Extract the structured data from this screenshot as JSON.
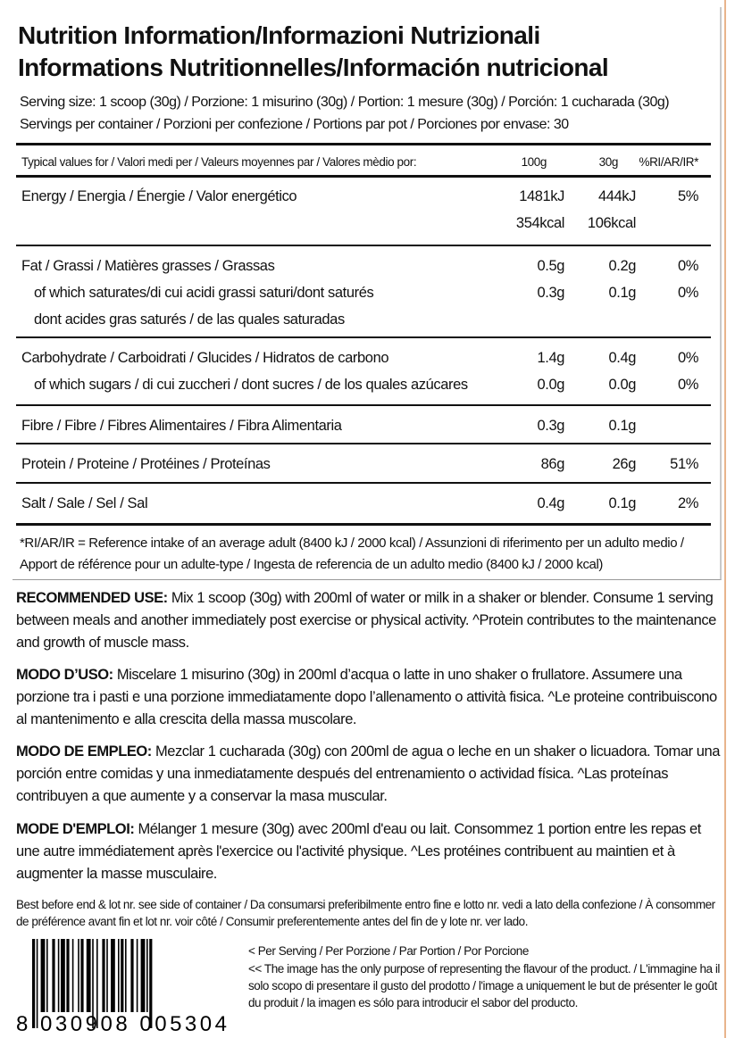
{
  "title": {
    "line1": "Nutrition Information/Informazioni Nutrizionali",
    "line2": "Informations Nutritionnelles/Información nutricional"
  },
  "serving": {
    "size": "Serving size: 1 scoop (30g) / Porzione: 1 misurino (30g) / Portion: 1 mesure (30g) / Porción: 1 cucharada (30g)",
    "per_container": "Servings per container / Porzioni per confezione / Portions par pot / Porciones por envase: 30"
  },
  "header": {
    "label": "Typical values for / Valori medi per / Valeurs moyennes par / Valores mèdio por:",
    "c1": "100g",
    "c2": "30g",
    "c3": "%RI/AR/IR*"
  },
  "groups": [
    {
      "lines": [
        {
          "label": "Energy / Energia / Énergie / Valor energético",
          "c1": "1481kJ",
          "c2": "444kJ",
          "c3": "5%"
        },
        {
          "label": "",
          "c1": "354kcal",
          "c2": "106kcal",
          "c3": ""
        }
      ]
    },
    {
      "lines": [
        {
          "label": "Fat / Grassi / Matières grasses / Grassas",
          "c1": "0.5g",
          "c2": "0.2g",
          "c3": "0%"
        },
        {
          "label": "of which saturates/di cui acidi grassi saturi/dont saturés",
          "c1": "0.3g",
          "c2": "0.1g",
          "c3": "0%",
          "indent": true
        },
        {
          "label": "dont acides gras saturés / de las quales saturadas",
          "c1": "",
          "c2": "",
          "c3": "",
          "indent": true
        }
      ]
    },
    {
      "lines": [
        {
          "label": "Carbohydrate / Carboidrati / Glucides / Hidratos de carbono",
          "c1": "1.4g",
          "c2": "0.4g",
          "c3": "0%"
        },
        {
          "label": "of which sugars / di cui zuccheri / dont sucres / de los quales azúcares",
          "c1": "0.0g",
          "c2": "0.0g",
          "c3": "0%",
          "indent": true
        }
      ]
    },
    {
      "lines": [
        {
          "label": "Fibre / Fibre / Fibres Alimentaires / Fibra Alimentaria",
          "c1": "0.3g",
          "c2": "0.1g",
          "c3": ""
        }
      ]
    },
    {
      "lines": [
        {
          "label": "Protein / Proteine / Protéines / Proteínas",
          "c1": "86g",
          "c2": "26g",
          "c3": "51%"
        }
      ]
    },
    {
      "lines": [
        {
          "label": "Salt / Sale / Sel / Sal",
          "c1": "0.4g",
          "c2": "0.1g",
          "c3": "2%"
        }
      ]
    }
  ],
  "footnote": "*RI/AR/IR = Reference intake of an average adult (8400 kJ / 2000 kcal)  / Assunzioni di riferimento per un adulto medio / Apport de référence pour un adulte-type / Ingesta de referencia de un adulto medio (8400 kJ / 2000 kcal)",
  "usage": [
    {
      "head": "RECOMMENDED USE:",
      "text": " Mix 1 scoop (30g) with 200ml of water or milk in a shaker or blender. Consume 1 serving between meals and another immediately post exercise or physical activity. ^Protein contributes to the maintenance and growth of muscle mass."
    },
    {
      "head": "MODO D’USO:",
      "text": " Miscelare 1 misurino (30g) in 200ml d’acqua o latte in uno shaker o frullatore. Assumere una porzione tra i pasti e una porzione immediatamente dopo l’allenamento o attività fisica. ^Le proteine contribuiscono al mantenimento e alla crescita della massa muscolare."
    },
    {
      "head": "MODO DE EMPLEO:",
      "text": " Mezclar 1 cucharada (30g) con 200ml de agua o leche en un shaker o licuadora. Tomar una porción entre comidas y una inmediatamente después del entrenamiento o actividad física. ^Las proteínas contribuyen a que aumente y a conservar la masa muscular."
    },
    {
      "head": "MODE D'EMPLOI:",
      "text": " Mélanger 1 mesure (30g) avec 200ml d'eau ou lait. Consommez 1 portion entre les repas et une autre immédiatement après l'exercice ou l'activité physique. ^Les protéines contribuent au maintien et à augmenter la masse musculaire."
    }
  ],
  "best_before": "Best before end & lot nr. see side of container / Da consumarsi preferibilmente entro fine e lotto nr. vedi a lato della confezione / À consommer de préférence avant fin et lot nr. voir côté / Consumir preferentemente antes del fin de y lote nr. ver lado.",
  "barcode": "8 030908 005304",
  "notes": {
    "per_serving": "< Per Serving / Per Porzione / Par Portion / Por Porcione",
    "image": "<< The image has the only purpose of representing the flavour of the product. / L'immagine ha il solo scopo di presentare il gusto del prodotto / l'image a uniquement le but de présenter le goût du produit / la imagen es sólo para introducir el sabor del producto."
  }
}
